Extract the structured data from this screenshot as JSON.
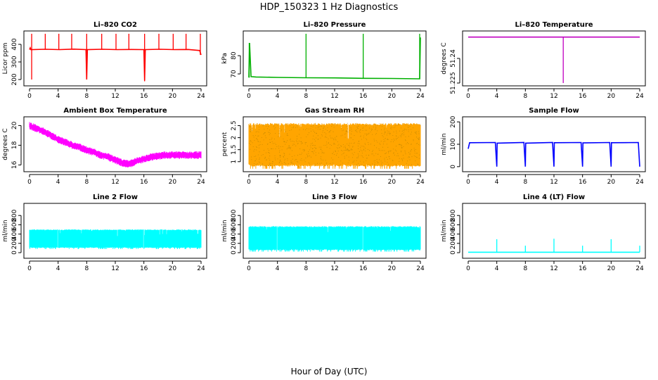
{
  "title": "HDP_150323  1 Hz Diagnostics",
  "xlabel": "Hour of Day (UTC)",
  "chart_data": [
    {
      "id": "co2",
      "type": "line",
      "title": "Li–820 CO2",
      "ylabel": "Licor ppm",
      "color": "#ff0000",
      "xlim": [
        0,
        24
      ],
      "xticks": [
        0,
        4,
        8,
        12,
        16,
        20,
        24
      ],
      "ylim": [
        180,
        460
      ],
      "yticks": [
        200,
        300,
        400
      ],
      "series": [
        {
          "x": [
            0,
            0.1,
            0.2,
            2.2,
            4.2,
            6.2,
            7.9,
            8.0,
            8.1,
            10.2,
            12.2,
            14.2,
            16.0,
            16.1,
            16.2,
            18.2,
            20.2,
            22.2,
            23.8,
            24
          ],
          "values": [
            370,
            380,
            370,
            372,
            370,
            373,
            370,
            200,
            370,
            372,
            370,
            371,
            370,
            195,
            370,
            372,
            370,
            371,
            365,
            340
          ]
        }
      ],
      "spikes": [
        {
          "x": 0.3,
          "values": [
            200,
            460
          ]
        },
        {
          "x": 2.2,
          "values": [
            370,
            460
          ]
        },
        {
          "x": 4.1,
          "values": [
            370,
            460
          ]
        },
        {
          "x": 5.9,
          "values": [
            370,
            460
          ]
        },
        {
          "x": 8.0,
          "values": [
            200,
            460
          ]
        },
        {
          "x": 10.1,
          "values": [
            370,
            460
          ]
        },
        {
          "x": 12.1,
          "values": [
            370,
            460
          ]
        },
        {
          "x": 13.9,
          "values": [
            370,
            460
          ]
        },
        {
          "x": 16.1,
          "values": [
            190,
            460
          ]
        },
        {
          "x": 18.1,
          "values": [
            370,
            460
          ]
        },
        {
          "x": 20.1,
          "values": [
            370,
            460
          ]
        },
        {
          "x": 21.9,
          "values": [
            370,
            460
          ]
        },
        {
          "x": 23.9,
          "values": [
            340,
            460
          ]
        }
      ]
    },
    {
      "id": "pres",
      "type": "line",
      "title": "Li–820 Pressure",
      "ylabel": "kPa",
      "color": "#00b000",
      "xlim": [
        0,
        24
      ],
      "xticks": [
        0,
        4,
        8,
        12,
        16,
        20,
        24
      ],
      "ylim": [
        65,
        92
      ],
      "yticks": [
        70,
        80
      ],
      "series": [
        {
          "x": [
            0,
            0.1,
            0.3,
            1,
            4,
            8,
            12,
            16,
            20,
            23.9,
            24
          ],
          "values": [
            68,
            87,
            68.5,
            68.3,
            68.1,
            67.9,
            67.8,
            67.6,
            67.5,
            67.3,
            90
          ]
        }
      ],
      "spikes": [
        {
          "x": 0.05,
          "values": [
            68,
            87
          ]
        },
        {
          "x": 8.0,
          "values": [
            67.9,
            92
          ]
        },
        {
          "x": 16.0,
          "values": [
            67.6,
            92
          ]
        },
        {
          "x": 23.9,
          "values": [
            67.3,
            92
          ]
        }
      ]
    },
    {
      "id": "ltemp",
      "type": "line",
      "title": "Li–820 Temperature",
      "ylabel": "degrees C",
      "color": "#c000c0",
      "xlim": [
        0,
        24
      ],
      "xticks": [
        0,
        4,
        8,
        12,
        16,
        20,
        24
      ],
      "ylim": [
        51.225,
        51.255
      ],
      "yticks": [
        51.225,
        51.24
      ],
      "series": [
        {
          "x": [
            0,
            24
          ],
          "values": [
            51.253,
            51.253
          ]
        }
      ],
      "spikes": [
        {
          "x": 13.3,
          "values": [
            51.225,
            51.253
          ]
        }
      ]
    },
    {
      "id": "abt",
      "type": "band",
      "title": "Ambient Box Temperature",
      "ylabel": "degrees C",
      "color": "#ff00ff",
      "xlim": [
        0,
        24
      ],
      "xticks": [
        0,
        4,
        8,
        12,
        16,
        20,
        24
      ],
      "ylim": [
        15.6,
        20.6
      ],
      "yticks": [
        16,
        18,
        20
      ],
      "series": [
        {
          "x": [
            0,
            1,
            2,
            3,
            4,
            5,
            6,
            7,
            8,
            9,
            10,
            11,
            12,
            13,
            14,
            15,
            16,
            17,
            18,
            19,
            20,
            21,
            22,
            23,
            24
          ],
          "values": [
            20.0,
            19.7,
            19.4,
            19.0,
            18.6,
            18.3,
            18.0,
            17.8,
            17.5,
            17.3,
            17.0,
            16.8,
            16.5,
            16.2,
            16.1,
            16.4,
            16.6,
            16.8,
            16.9,
            17.0,
            17.0,
            17.0,
            17.0,
            17.0,
            17.0
          ],
          "spread": 0.35
        }
      ]
    },
    {
      "id": "rh",
      "type": "band",
      "title": "Gas Stream RH",
      "ylabel": "percent",
      "color": "#ffa500",
      "xlim": [
        0,
        24
      ],
      "xticks": [
        0,
        4,
        8,
        12,
        16,
        20,
        24
      ],
      "ylim": [
        0.7,
        2.75
      ],
      "yticks": [
        1.0,
        1.5,
        2.0,
        2.5
      ],
      "series": [
        {
          "x": [
            0,
            24
          ],
          "values": [
            1.7,
            1.7
          ],
          "lo": 0.8,
          "hi": 2.6
        }
      ]
    },
    {
      "id": "sflow",
      "type": "line",
      "title": "Sample Flow",
      "ylabel": "ml/min",
      "color": "#0000ff",
      "xlim": [
        0,
        24
      ],
      "xticks": [
        0,
        4,
        8,
        12,
        16,
        20,
        24
      ],
      "ylim": [
        -10,
        210
      ],
      "yticks": [
        0,
        100,
        200
      ],
      "series": [
        {
          "x": [
            0,
            0.2,
            3.8,
            4.0,
            4.05,
            7.8,
            8.0,
            8.05,
            11.8,
            12.0,
            12.05,
            15.8,
            16.0,
            16.05,
            19.8,
            20.0,
            20.05,
            23.8,
            24
          ],
          "values": [
            80,
            107,
            108,
            0,
            105,
            108,
            0,
            105,
            108,
            0,
            107,
            108,
            0,
            106,
            108,
            0,
            107,
            108,
            0
          ]
        }
      ]
    },
    {
      "id": "l2",
      "type": "band",
      "title": "Line 2 Flow",
      "ylabel": "ml/min",
      "color": "#00ffff",
      "xlim": [
        0,
        24
      ],
      "xticks": [
        0,
        4,
        8,
        12,
        16,
        20,
        24
      ],
      "ylim": [
        -60,
        1000
      ],
      "yticks": [
        0,
        200,
        400,
        600,
        800
      ],
      "series": [
        {
          "x": [
            0,
            24
          ],
          "values": [
            300,
            300
          ],
          "lo": 100,
          "hi": 500
        }
      ],
      "gaps": [
        3.95,
        7.95,
        11.95,
        15.95,
        19.95,
        23.5
      ]
    },
    {
      "id": "l3",
      "type": "band",
      "title": "Line 3 Flow",
      "ylabel": "ml/min",
      "color": "#00ffff",
      "xlim": [
        0,
        24
      ],
      "xticks": [
        0,
        4,
        8,
        12,
        16,
        20,
        24
      ],
      "ylim": [
        -60,
        1000
      ],
      "yticks": [
        0,
        200,
        400,
        600,
        800
      ],
      "series": [
        {
          "x": [
            0,
            24
          ],
          "values": [
            350,
            350
          ],
          "lo": 50,
          "hi": 570
        }
      ],
      "gaps": [
        3.95,
        7.95,
        11.95,
        15.95,
        19.95,
        23.8
      ]
    },
    {
      "id": "l4",
      "type": "line",
      "title": "Line 4 (LT) Flow",
      "ylabel": "ml/min",
      "color": "#00ffff",
      "xlim": [
        0,
        24
      ],
      "xticks": [
        0,
        4,
        8,
        12,
        16,
        20,
        24
      ],
      "ylim": [
        -60,
        1000
      ],
      "yticks": [
        0,
        200,
        400,
        600,
        800
      ],
      "series": [
        {
          "x": [
            0,
            24
          ],
          "values": [
            10,
            10
          ]
        }
      ],
      "spikes": [
        {
          "x": 4.0,
          "values": [
            10,
            290
          ]
        },
        {
          "x": 8.0,
          "values": [
            10,
            150
          ]
        },
        {
          "x": 12.0,
          "values": [
            10,
            300
          ]
        },
        {
          "x": 16.0,
          "values": [
            10,
            150
          ]
        },
        {
          "x": 20.0,
          "values": [
            10,
            290
          ]
        },
        {
          "x": 24.0,
          "values": [
            10,
            150
          ]
        }
      ]
    }
  ]
}
